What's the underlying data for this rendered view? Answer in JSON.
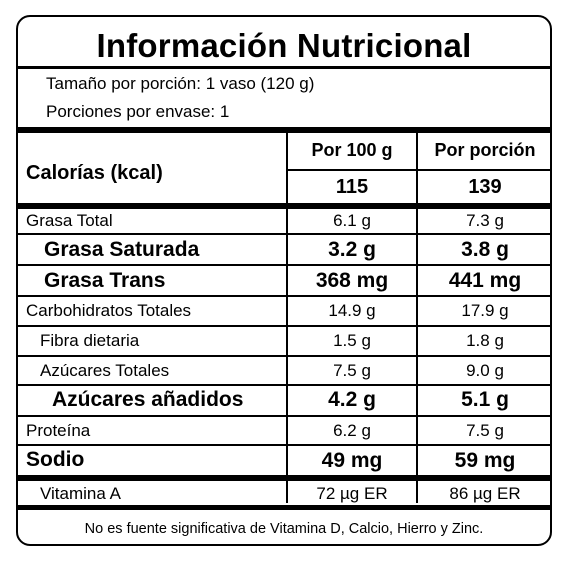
{
  "title": "Información Nutricional",
  "serving": {
    "size": "Tamaño por porción: 1 vaso (120 g)",
    "count": "Porciones por envase: 1"
  },
  "columns": {
    "per100": "Por 100 g",
    "perServing": "Por porción"
  },
  "calories": {
    "label": "Calorías (kcal)",
    "per100": "115",
    "perServing": "139"
  },
  "rows": [
    {
      "label": "Grasa Total",
      "per100": "6.1 g",
      "perServing": "7.3 g"
    },
    {
      "label": "Grasa Saturada",
      "per100": "3.2 g",
      "perServing": "3.8 g"
    },
    {
      "label": "Grasa Trans",
      "per100": "368 mg",
      "perServing": "441 mg"
    },
    {
      "label": "Carbohidratos Totales",
      "per100": "14.9 g",
      "perServing": "17.9 g"
    },
    {
      "label": "Fibra dietaria",
      "per100": "1.5 g",
      "perServing": "1.8 g"
    },
    {
      "label": "Azúcares Totales",
      "per100": "7.5 g",
      "perServing": "9.0 g"
    },
    {
      "label": "Azúcares añadidos",
      "per100": "4.2 g",
      "perServing": "5.1 g"
    },
    {
      "label": "Proteína",
      "per100": "6.2 g",
      "perServing": "7.5 g"
    },
    {
      "label": "Sodio",
      "per100": "49 mg",
      "perServing": "59 mg"
    }
  ],
  "vitamin": {
    "label": "Vitamina A",
    "per100": "72 µg ER",
    "perServing": "86 µg ER"
  },
  "footer": "No es fuente significativa de Vitamina D, Calcio, Hierro y Zinc."
}
